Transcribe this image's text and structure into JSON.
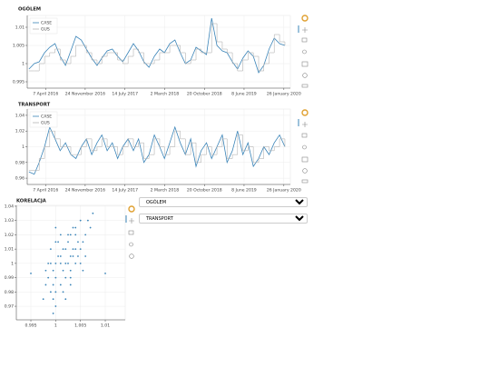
{
  "chart_data": [
    {
      "type": "line",
      "title": "OGÓLEM",
      "x": [
        "2016-01-01",
        "2016-02-01",
        "2016-03-01",
        "2016-04-01",
        "2016-05-01",
        "2016-06-01",
        "2016-07-01",
        "2016-08-01",
        "2016-09-01",
        "2016-10-01",
        "2016-11-01",
        "2016-12-01",
        "2017-01-01",
        "2017-02-01",
        "2017-03-01",
        "2017-04-01",
        "2017-05-01",
        "2017-06-01",
        "2017-07-01",
        "2017-08-01",
        "2017-09-01",
        "2017-10-01",
        "2017-11-01",
        "2017-12-01",
        "2018-01-01",
        "2018-02-01",
        "2018-03-01",
        "2018-04-01",
        "2018-05-01",
        "2018-06-01",
        "2018-07-01",
        "2018-08-01",
        "2018-09-01",
        "2018-10-01",
        "2018-11-01",
        "2018-12-01",
        "2019-01-01",
        "2019-02-01",
        "2019-03-01",
        "2019-04-01",
        "2019-05-01",
        "2019-06-01",
        "2019-07-01",
        "2019-08-01",
        "2019-09-01",
        "2019-10-01",
        "2019-11-01",
        "2019-12-01",
        "2020-01-01",
        "2020-02-01"
      ],
      "series": [
        {
          "name": "CASE",
          "color": "#3a84b8",
          "values": [
            0.9985,
            1.0,
            1.0005,
            1.003,
            1.0045,
            1.0055,
            1.002,
            0.9995,
            1.0035,
            1.0075,
            1.0065,
            1.004,
            1.0015,
            0.9995,
            1.0015,
            1.0035,
            1.004,
            1.002,
            1.0005,
            1.003,
            1.0055,
            1.0035,
            1.0005,
            0.999,
            1.002,
            1.004,
            1.003,
            1.0055,
            1.0065,
            1.003,
            1.0,
            1.001,
            1.0045,
            1.0035,
            1.0025,
            1.0125,
            1.005,
            1.0035,
            1.003,
            1.0005,
            0.9985,
            1.0015,
            1.0035,
            1.002,
            0.9975,
            0.9995,
            1.004,
            1.007,
            1.0055,
            1.005
          ]
        },
        {
          "name": "GUS",
          "color": "#b4b4b4",
          "step": true,
          "values": [
            0.998,
            0.998,
            1.0,
            1.002,
            1.003,
            1.004,
            1.001,
            1.0,
            1.002,
            1.005,
            1.005,
            1.003,
            1.001,
            1.0,
            1.002,
            1.003,
            1.003,
            1.001,
            1.0,
            1.002,
            1.004,
            1.003,
            1.0,
            1.0,
            1.001,
            1.003,
            1.003,
            1.005,
            1.005,
            1.003,
            1.0,
            1.001,
            1.004,
            1.003,
            1.003,
            1.011,
            1.006,
            1.004,
            1.003,
            1.0,
            0.998,
            1.001,
            1.003,
            1.002,
            0.998,
            1.0,
            1.003,
            1.008,
            1.006,
            1.005
          ]
        }
      ],
      "xlim": [
        "2015-12-22",
        "2020-03-04"
      ],
      "xticks": [
        {
          "value": "2016-04-07",
          "label": "7 April 2016"
        },
        {
          "value": "2016-11-24",
          "label": "24 November 2016"
        },
        {
          "value": "2017-07-14",
          "label": "14 July 2017"
        },
        {
          "value": "2018-03-02",
          "label": "2 March 2018"
        },
        {
          "value": "2018-10-20",
          "label": "20 October 2018"
        },
        {
          "value": "2019-06-08",
          "label": "8 June 2019"
        },
        {
          "value": "2020-01-26",
          "label": "26 January 2020"
        }
      ],
      "ylim": [
        0.99325,
        1.01325
      ],
      "yticks": [
        0.995,
        1,
        1.005,
        1.01
      ],
      "grid": true,
      "legend": "top-left"
    },
    {
      "type": "line",
      "title": "TRANSPORT",
      "x": [
        "2016-01-01",
        "2016-02-01",
        "2016-03-01",
        "2016-04-01",
        "2016-05-01",
        "2016-06-01",
        "2016-07-01",
        "2016-08-01",
        "2016-09-01",
        "2016-10-01",
        "2016-11-01",
        "2016-12-01",
        "2017-01-01",
        "2017-02-01",
        "2017-03-01",
        "2017-04-01",
        "2017-05-01",
        "2017-06-01",
        "2017-07-01",
        "2017-08-01",
        "2017-09-01",
        "2017-10-01",
        "2017-11-01",
        "2017-12-01",
        "2018-01-01",
        "2018-02-01",
        "2018-03-01",
        "2018-04-01",
        "2018-05-01",
        "2018-06-01",
        "2018-07-01",
        "2018-08-01",
        "2018-09-01",
        "2018-10-01",
        "2018-11-01",
        "2018-12-01",
        "2019-01-01",
        "2019-02-01",
        "2019-03-01",
        "2019-04-01",
        "2019-05-01",
        "2019-06-01",
        "2019-07-01",
        "2019-08-01",
        "2019-09-01",
        "2019-10-01",
        "2019-11-01",
        "2019-12-01",
        "2020-01-01",
        "2020-02-01"
      ],
      "series": [
        {
          "name": "CASE",
          "color": "#3a84b8",
          "values": [
            0.968,
            0.965,
            0.98,
            1.0,
            1.025,
            1.01,
            0.995,
            1.005,
            0.99,
            0.985,
            1.0,
            1.01,
            0.99,
            1.005,
            1.015,
            0.995,
            1.005,
            0.985,
            1.0,
            1.01,
            0.995,
            1.01,
            0.98,
            0.99,
            1.015,
            1.0,
            0.985,
            1.005,
            1.025,
            1.005,
            0.99,
            1.01,
            0.975,
            0.995,
            1.005,
            0.985,
            1.0,
            1.015,
            0.98,
            0.995,
            1.02,
            0.99,
            1.005,
            0.975,
            0.985,
            1.0,
            0.99,
            1.005,
            1.015,
            1.0
          ]
        },
        {
          "name": "GUS",
          "color": "#b4b4b4",
          "step": true,
          "values": [
            0.97,
            0.97,
            0.985,
            1.0,
            1.02,
            1.01,
            1.0,
            1.0,
            0.99,
            0.99,
            1.0,
            1.01,
            0.995,
            1.0,
            1.01,
            1.0,
            1.0,
            0.99,
            1.0,
            1.01,
            1.0,
            1.005,
            0.985,
            0.99,
            1.01,
            1.0,
            0.99,
            1.0,
            1.02,
            1.01,
            0.99,
            1.005,
            0.98,
            0.99,
            1.0,
            0.99,
            1.0,
            1.01,
            0.985,
            0.99,
            1.015,
            0.995,
            1.0,
            0.98,
            0.985,
            1.0,
            0.995,
            1.0,
            1.01,
            1.0
          ]
        }
      ],
      "xlim": [
        "2015-12-22",
        "2020-03-04"
      ],
      "xticks": [
        {
          "value": "2016-04-07",
          "label": "7 April 2016"
        },
        {
          "value": "2016-11-24",
          "label": "24 November 2016"
        },
        {
          "value": "2017-07-14",
          "label": "14 July 2017"
        },
        {
          "value": "2018-03-02",
          "label": "2 March 2018"
        },
        {
          "value": "2018-10-20",
          "label": "20 October 2018"
        },
        {
          "value": "2019-06-08",
          "label": "8 June 2019"
        },
        {
          "value": "2020-01-26",
          "label": "26 January 2020"
        }
      ],
      "ylim": [
        0.952,
        1.048
      ],
      "yticks": [
        0.96,
        0.98,
        1,
        1.02,
        1.04
      ],
      "grid": true,
      "legend": "top-left"
    },
    {
      "type": "scatter",
      "title": "KORELACJA",
      "x": [
        0.9975,
        0.998,
        0.9985,
        0.999,
        0.9995,
        1.0,
        1.0,
        1.0005,
        1.001,
        1.0015,
        1.002,
        1.0025,
        1.003,
        1.003,
        1.0035,
        1.004,
        1.0045,
        1.005,
        1.0055,
        1.006,
        0.998,
        0.999,
        1.0,
        1.001,
        1.002,
        1.003,
        1.004,
        1.005,
        1.006,
        1.007,
        0.9985,
        0.9995,
        1.0005,
        1.0015,
        1.0025,
        1.0035,
        1.0045,
        1.0055,
        1.0065,
        1.0075,
        0.9995,
        1.0,
        1.001,
        1.002,
        1.003,
        1.004,
        0.995,
        1.01,
        1.0,
        1.0025,
        0.999,
        1.001,
        1.003,
        1.005,
        1.002,
        1.0,
        1.004,
        0.9995,
        1.0015,
        1.0035
      ],
      "values": [
        0.975,
        0.985,
        0.99,
        0.98,
        0.995,
        1.0,
        0.97,
        1.005,
        0.985,
        1.01,
        1.0,
        1.015,
        0.995,
        1.02,
        1.01,
        1.025,
        1.005,
        1.03,
        1.015,
        1.02,
        0.995,
        1.0,
        0.99,
        1.005,
        1.01,
        0.985,
        1.0,
        1.01,
        1.005,
        1.025,
        1.0,
        0.975,
        1.015,
        0.995,
        1.02,
        1.005,
        1.015,
        0.995,
        1.03,
        1.035,
        0.965,
        0.98,
        1.0,
        0.99,
        1.005,
        1.01,
        0.993,
        0.993,
        1.025,
        1.0,
        1.01,
        1.02,
        0.99,
        1.0,
        0.975,
        1.015,
        1.02,
        0.985,
        0.98,
        1.025
      ],
      "color": "#3a84b8",
      "xlim": [
        0.99207,
        1.01402
      ],
      "xticks": [
        0.995,
        1,
        1.005,
        1.01
      ],
      "ylim": [
        0.9605,
        1.0406
      ],
      "yticks": [
        0.97,
        0.98,
        0.99,
        1,
        1.01,
        1.02,
        1.03,
        1.04
      ],
      "grid": true
    }
  ],
  "controls": {
    "select1": "OGÓLEM",
    "select2": "TRANSPORT"
  }
}
